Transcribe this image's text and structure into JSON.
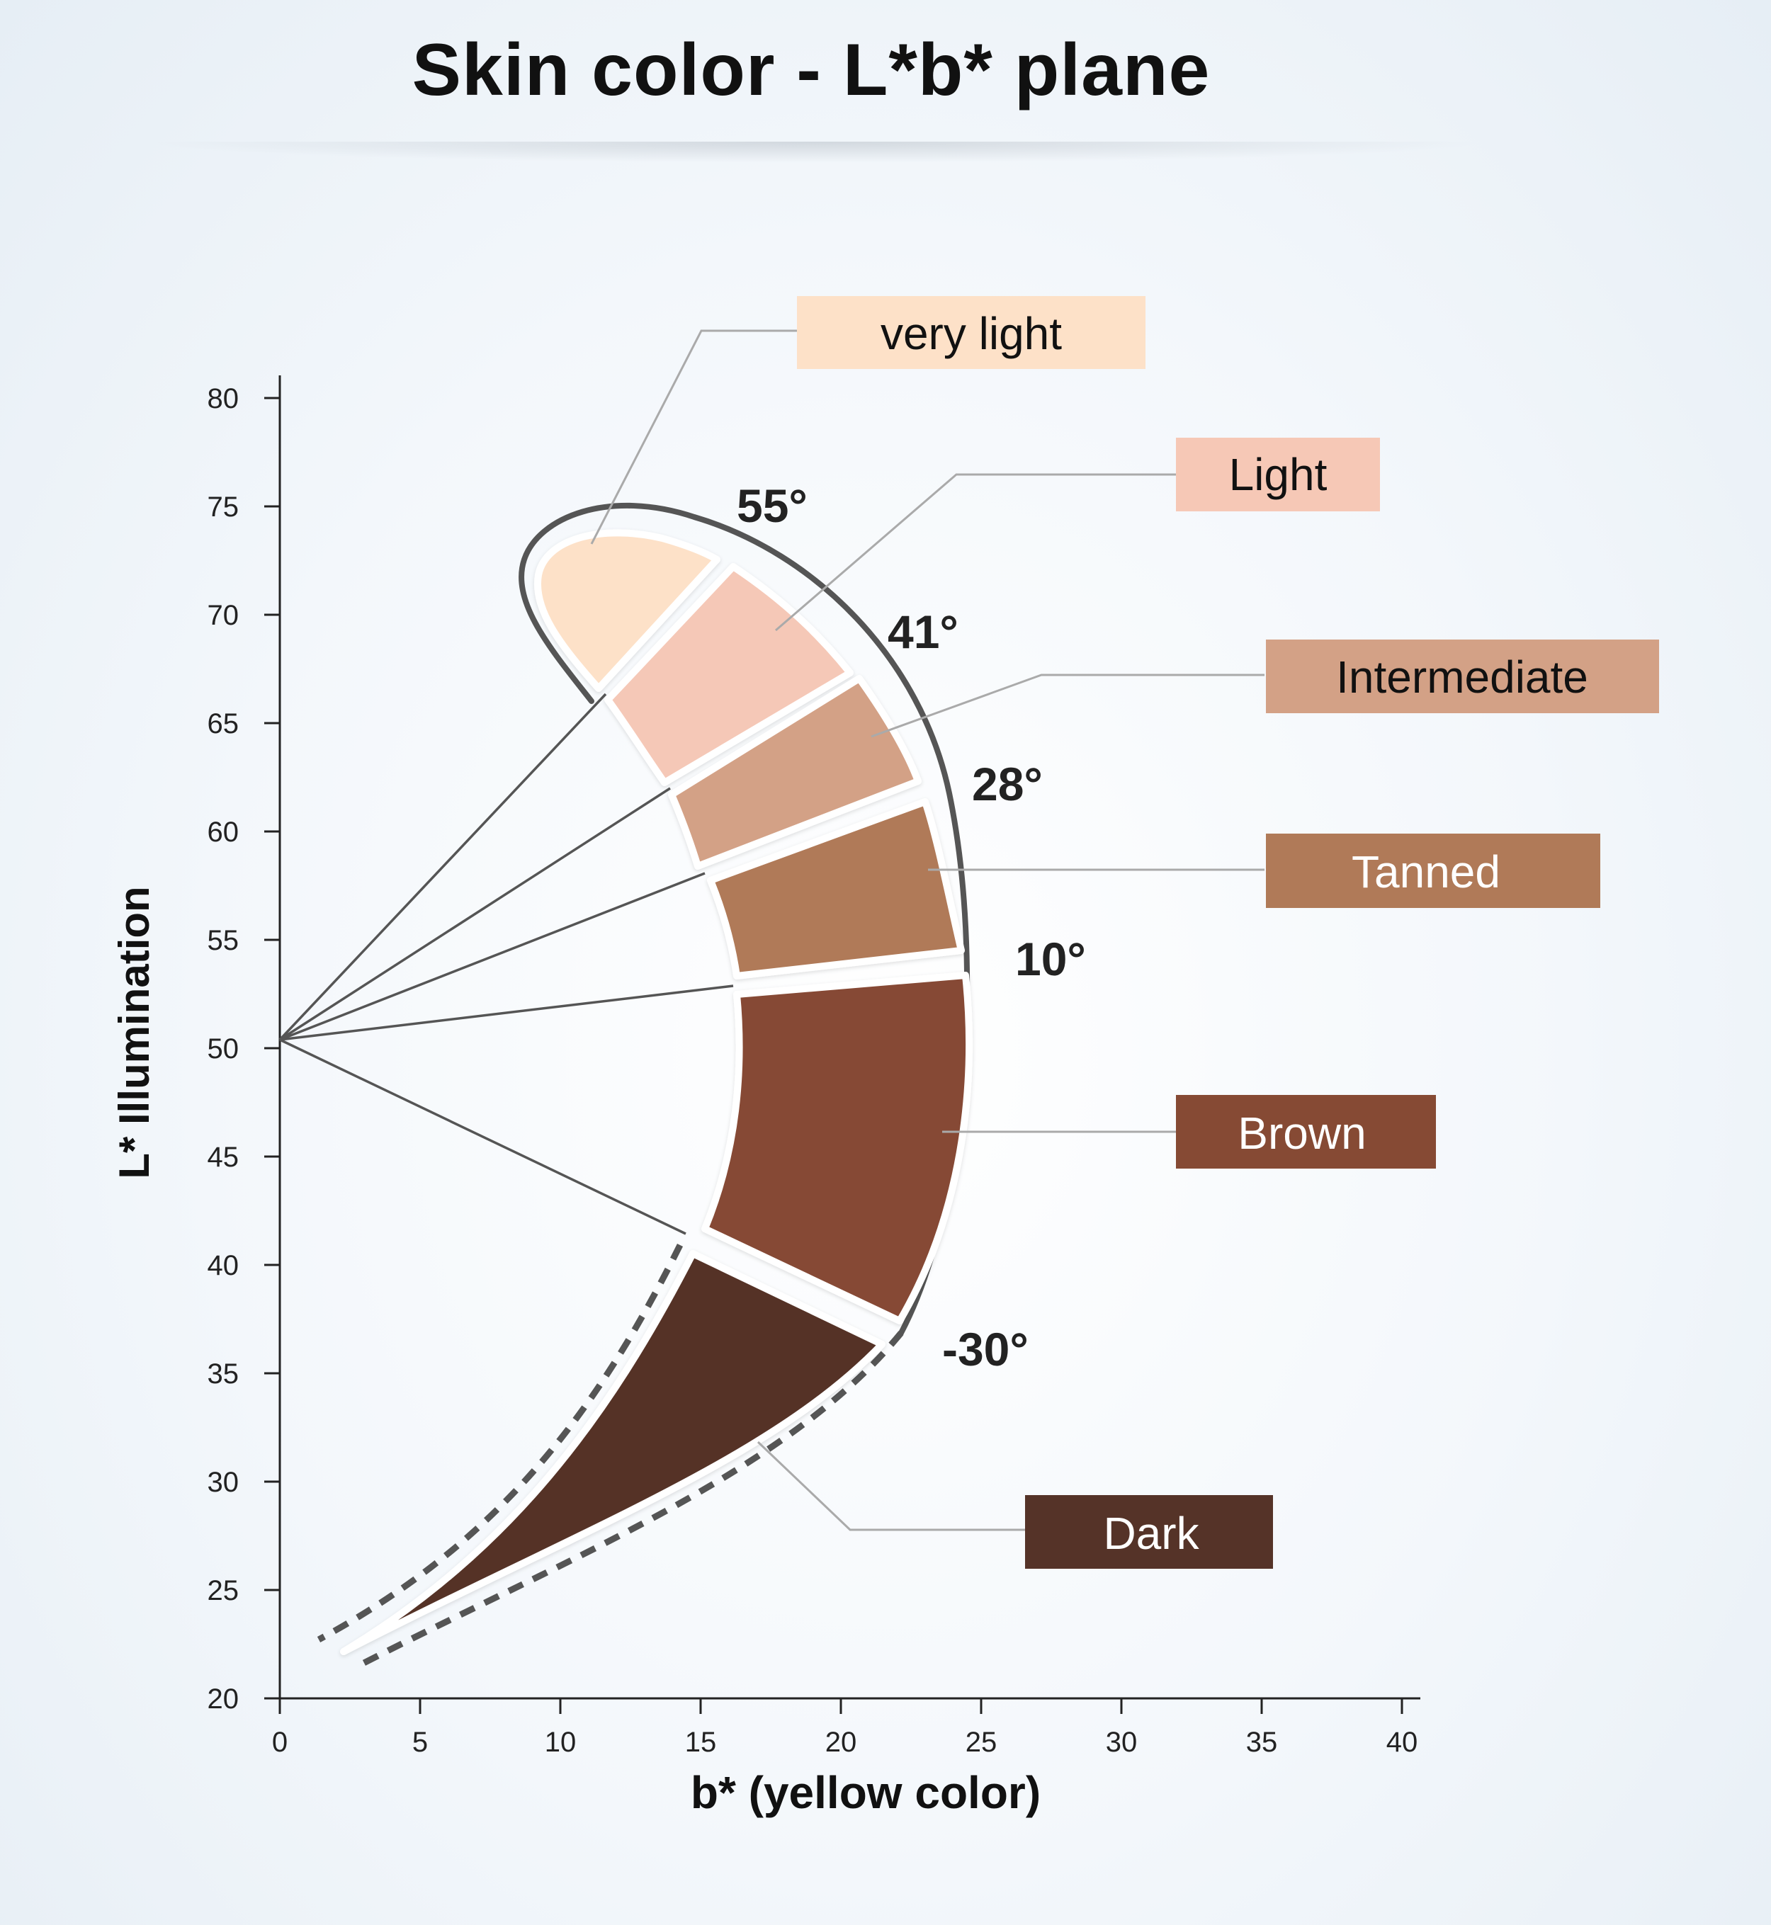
{
  "title": "Skin color - L*b* plane",
  "axes": {
    "xlabel": "b* (yellow color)",
    "ylabel": "L* Illumination",
    "x_ticks": [
      "0",
      "5",
      "10",
      "15",
      "20",
      "25",
      "30",
      "35",
      "40"
    ],
    "y_ticks": [
      "20",
      "25",
      "30",
      "35",
      "40",
      "45",
      "50",
      "55",
      "60",
      "65",
      "70",
      "75",
      "80"
    ],
    "x_range": [
      0,
      40
    ],
    "y_range": [
      20,
      80
    ]
  },
  "angles": [
    "55°",
    "41°",
    "28°",
    "10°",
    "-30°"
  ],
  "categories": [
    {
      "label": "very light",
      "fill": "#fde1c8",
      "label_bg": "#fde1c8",
      "label_color": "#111111"
    },
    {
      "label": "Light",
      "fill": "#f5c8b7",
      "label_bg": "#f6c8b6",
      "label_color": "#111111"
    },
    {
      "label": "Intermediate",
      "fill": "#d3a186",
      "label_bg": "#d3a186",
      "label_color": "#111111"
    },
    {
      "label": "Tanned",
      "fill": "#b07a58",
      "label_bg": "#b07a58",
      "label_color": "#ffffff"
    },
    {
      "label": "Brown",
      "fill": "#864a34",
      "label_bg": "#864a34",
      "label_color": "#ffffff"
    },
    {
      "label": "Dark",
      "fill": "#553328",
      "label_bg": "#553328",
      "label_color": "#ffffff"
    }
  ]
}
